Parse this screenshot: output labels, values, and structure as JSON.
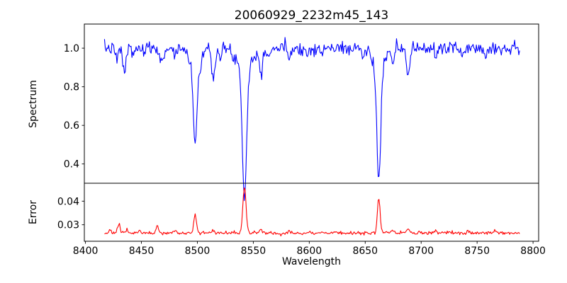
{
  "chart_data": {
    "type": "line",
    "title": "20060929_2232m45_143",
    "xlabel": "Wavelength",
    "grid": false,
    "legend": "none",
    "colors": {
      "spectrum_line": "#0000ff",
      "error_line": "#ff0000",
      "axes_frame": "#000000",
      "background": "#ffffff",
      "text": "#000000"
    },
    "xlim": [
      8399,
      8805
    ],
    "xticks": [
      8400,
      8450,
      8500,
      8550,
      8600,
      8650,
      8700,
      8750,
      8800
    ],
    "x_range": [
      8417,
      8788
    ],
    "n_points": 500,
    "noise_seed": 7,
    "panels": [
      {
        "name": "spectrum",
        "ylabel": "Spectrum",
        "color": "#0000ff",
        "ylim": [
          0.3,
          1.125
        ],
        "yticks": [
          1.0,
          0.8,
          0.6,
          0.4
        ],
        "ytick_labels": [
          "1.0",
          "0.8",
          "0.6",
          "0.4"
        ],
        "baseline": 1.0,
        "noise_sigma": 0.017,
        "absorption_lines": [
          {
            "center": 8428.0,
            "depth": 0.065,
            "sigma": 1.2
          },
          {
            "center": 8434.8,
            "depth": 0.125,
            "sigma": 1.4
          },
          {
            "center": 8443.0,
            "depth": 0.04,
            "sigma": 1.0
          },
          {
            "center": 8452.0,
            "depth": 0.045,
            "sigma": 1.0
          },
          {
            "center": 8468.3,
            "depth": 0.095,
            "sigma": 1.4
          },
          {
            "center": 8480.0,
            "depth": 0.045,
            "sigma": 1.0
          },
          {
            "center": 8493.0,
            "depth": 0.05,
            "sigma": 1.0
          },
          {
            "center": 8498.0,
            "depth": 0.44,
            "sigma": 1.7,
            "wing_depth": 0.05,
            "wing_sigma": 5
          },
          {
            "center": 8502.5,
            "depth": 0.075,
            "sigma": 1.2
          },
          {
            "center": 8514.2,
            "depth": 0.145,
            "sigma": 1.4
          },
          {
            "center": 8520.5,
            "depth": 0.06,
            "sigma": 1.0
          },
          {
            "center": 8542.1,
            "depth": 0.665,
            "sigma": 1.9,
            "wing_depth": 0.1,
            "wing_sigma": 7
          },
          {
            "center": 8556.8,
            "depth": 0.115,
            "sigma": 1.4
          },
          {
            "center": 8564.0,
            "depth": 0.045,
            "sigma": 1.0
          },
          {
            "center": 8582.0,
            "depth": 0.05,
            "sigma": 1.0
          },
          {
            "center": 8598.0,
            "depth": 0.045,
            "sigma": 1.0
          },
          {
            "center": 8611.0,
            "depth": 0.04,
            "sigma": 1.0
          },
          {
            "center": 8648.0,
            "depth": 0.045,
            "sigma": 1.0
          },
          {
            "center": 8662.1,
            "depth": 0.6,
            "sigma": 1.8,
            "wing_depth": 0.08,
            "wing_sigma": 6
          },
          {
            "center": 8674.8,
            "depth": 0.095,
            "sigma": 1.2
          },
          {
            "center": 8688.5,
            "depth": 0.155,
            "sigma": 1.4
          },
          {
            "center": 8713.0,
            "depth": 0.05,
            "sigma": 1.0
          },
          {
            "center": 8736.0,
            "depth": 0.045,
            "sigma": 1.0
          },
          {
            "center": 8757.0,
            "depth": 0.04,
            "sigma": 1.0
          }
        ]
      },
      {
        "name": "error",
        "ylabel": "Error",
        "color": "#ff0000",
        "ylim": [
          0.023,
          0.0476
        ],
        "yticks": [
          0.04,
          0.03
        ],
        "ytick_labels": [
          "0.04",
          "0.03"
        ],
        "baseline": 0.0265,
        "noise_sigma": 0.00035,
        "emission_spikes": [
          {
            "center": 8422.0,
            "amp": 0.0012,
            "sigma": 1.0
          },
          {
            "center": 8429.8,
            "amp": 0.0038,
            "sigma": 1.1
          },
          {
            "center": 8437.0,
            "amp": 0.0012,
            "sigma": 1.0
          },
          {
            "center": 8448.0,
            "amp": 0.001,
            "sigma": 1.0
          },
          {
            "center": 8464.5,
            "amp": 0.003,
            "sigma": 1.1
          },
          {
            "center": 8480.0,
            "amp": 0.0008,
            "sigma": 1.0
          },
          {
            "center": 8498.0,
            "amp": 0.0072,
            "sigma": 1.3
          },
          {
            "center": 8514.2,
            "amp": 0.0013,
            "sigma": 1.0
          },
          {
            "center": 8542.1,
            "amp": 0.02,
            "sigma": 1.4
          },
          {
            "center": 8556.8,
            "amp": 0.0013,
            "sigma": 1.0
          },
          {
            "center": 8582.0,
            "amp": 0.0008,
            "sigma": 1.0
          },
          {
            "center": 8611.0,
            "amp": 0.0008,
            "sigma": 1.0
          },
          {
            "center": 8662.1,
            "amp": 0.015,
            "sigma": 1.2
          },
          {
            "center": 8674.8,
            "amp": 0.001,
            "sigma": 1.0
          },
          {
            "center": 8688.5,
            "amp": 0.0018,
            "sigma": 1.1
          },
          {
            "center": 8713.0,
            "amp": 0.001,
            "sigma": 1.0
          },
          {
            "center": 8742.0,
            "amp": 0.001,
            "sigma": 1.0
          },
          {
            "center": 8766.0,
            "amp": 0.0012,
            "sigma": 1.0
          }
        ]
      }
    ]
  }
}
